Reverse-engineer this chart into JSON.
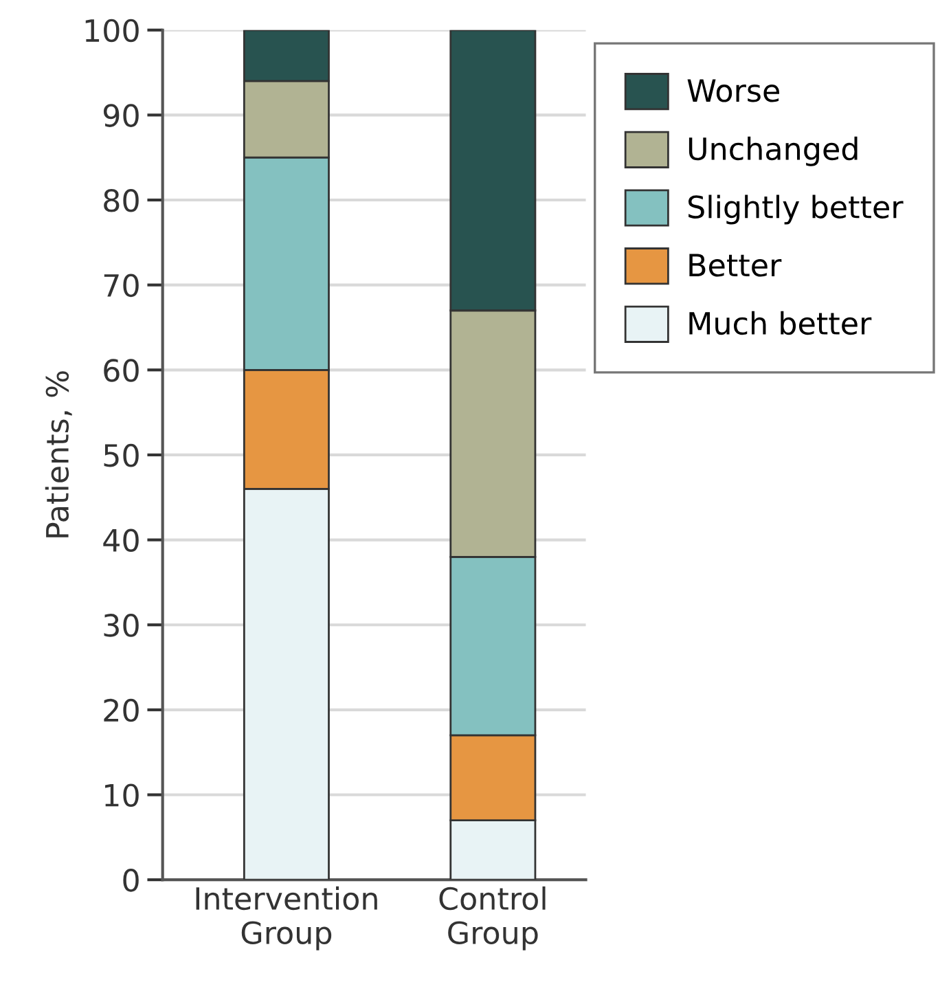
{
  "chart_data": {
    "type": "bar",
    "stacked": true,
    "ylabel": "Patients, %",
    "categories": [
      "Intervention\nGroup",
      "Control\nGroup"
    ],
    "series": [
      {
        "name": "Much better",
        "color": "#e8f3f5",
        "values": [
          46,
          7
        ]
      },
      {
        "name": "Better",
        "color": "#e69642",
        "values": [
          14,
          10
        ]
      },
      {
        "name": "Slightly better",
        "color": "#84c1c0",
        "values": [
          25,
          21
        ]
      },
      {
        "name": "Unchanged",
        "color": "#b1b393",
        "values": [
          9,
          29
        ]
      },
      {
        "name": "Worse",
        "color": "#285350",
        "values": [
          6,
          33
        ]
      }
    ],
    "ylim": [
      0,
      100
    ],
    "yticks": [
      0,
      10,
      20,
      30,
      40,
      50,
      60,
      70,
      80,
      90,
      100
    ],
    "grid": "y",
    "legend": "top right"
  }
}
